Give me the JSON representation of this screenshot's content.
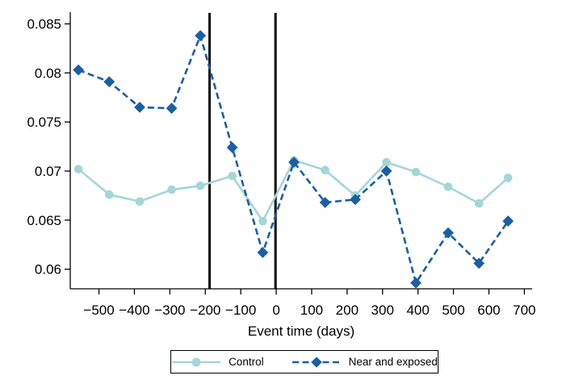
{
  "figure": {
    "background": "#ffffff",
    "text_color": "#000000",
    "axis_color": "#000000",
    "reference_line_color": "#1a1a1a"
  },
  "legend": {
    "items": [
      {
        "label": "Control",
        "series_key": "control",
        "marker": "circle-marker-icon"
      },
      {
        "label": "Near and exposed",
        "series_key": "near_exposed",
        "marker": "diamond-marker-icon"
      }
    ]
  },
  "chart_data": {
    "type": "line",
    "title": "",
    "xlabel": "Event time (days)",
    "ylabel": "",
    "grid": false,
    "legend_position": "bottom",
    "xlim": [
      -581,
      722
    ],
    "ylim": [
      0.058,
      0.0862
    ],
    "x_ticks": [
      -500,
      -400,
      -300,
      -200,
      -100,
      0,
      100,
      200,
      300,
      400,
      500,
      600,
      700
    ],
    "x_tick_labels": [
      "−500",
      "−400",
      "−300",
      "−200",
      "−100",
      "0",
      "100",
      "200",
      "300",
      "400",
      "500",
      "600",
      "700"
    ],
    "y_ticks": [
      0.06,
      0.065,
      0.07,
      0.075,
      0.08,
      0.085
    ],
    "y_tick_labels": [
      "0.06",
      "0.065",
      "0.07",
      "0.075",
      "0.08",
      "0.085"
    ],
    "vertical_lines": [
      -188,
      -2
    ],
    "x": [
      -558,
      -471,
      -385,
      -295,
      -214,
      -124,
      -38,
      50,
      138,
      223,
      311,
      394,
      485,
      572,
      654
    ],
    "series": [
      {
        "name": "Control",
        "key": "control",
        "color": "#a4d6d6",
        "line_style": "solid",
        "marker": "circle",
        "values": [
          0.0702,
          0.0676,
          0.0669,
          0.0681,
          0.0685,
          0.0695,
          0.0649,
          0.0711,
          0.0701,
          0.0675,
          0.0709,
          0.0699,
          0.0684,
          0.0667,
          0.0693
        ]
      },
      {
        "name": "Near and exposed",
        "key": "near_exposed",
        "color": "#1a5fa4",
        "line_style": "dashed",
        "marker": "diamond",
        "values": [
          0.0803,
          0.0791,
          0.0765,
          0.0764,
          0.0838,
          0.0724,
          0.0617,
          0.0709,
          0.0668,
          0.0671,
          0.07,
          0.0586,
          0.0637,
          0.0606,
          0.0649
        ]
      }
    ]
  }
}
